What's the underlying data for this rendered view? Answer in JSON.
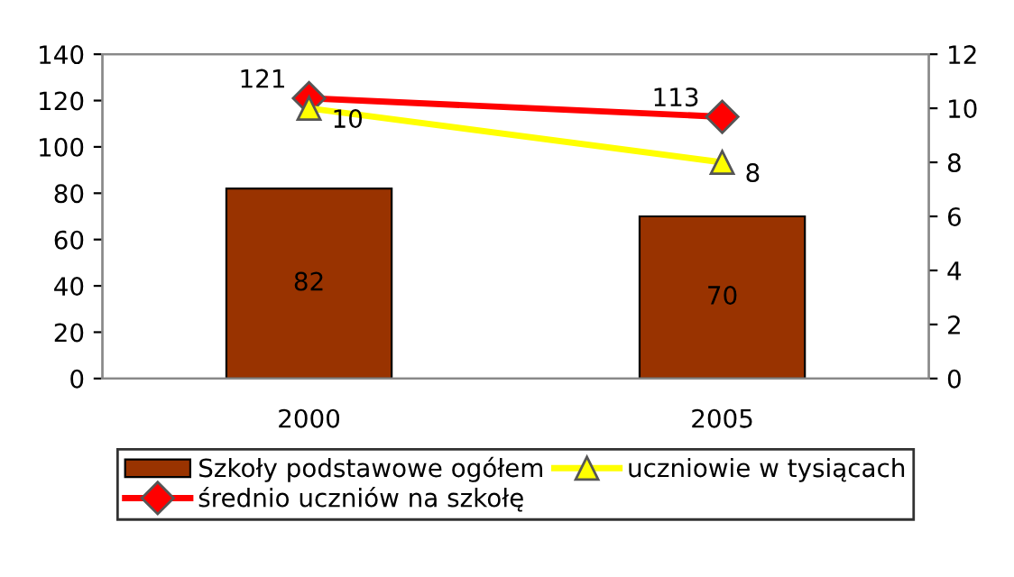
{
  "chart_data": {
    "type": "bar",
    "categories": [
      "2000",
      "2005"
    ],
    "series": [
      {
        "name": "Szkoły podstawowe ogółem",
        "color": "#993300",
        "values": [
          82,
          70
        ]
      },
      {
        "name": "średnio uczniów na szkołę",
        "type": "line",
        "color": "#ff0000",
        "marker": "diamond",
        "values": [
          121,
          113
        ]
      },
      {
        "name": "uczniowie w tysiącach",
        "type": "line",
        "color": "#ffff00",
        "marker": "triangle",
        "axis": "y2",
        "values": [
          10,
          8
        ]
      }
    ],
    "ylim": [
      0,
      140
    ],
    "yticks": [
      0,
      20,
      40,
      60,
      80,
      100,
      120,
      140
    ],
    "y2lim": [
      0,
      12
    ],
    "y2ticks": [
      0,
      2,
      4,
      6,
      8,
      10,
      12
    ],
    "data_labels": true,
    "legend": "bottom",
    "grid": false
  }
}
